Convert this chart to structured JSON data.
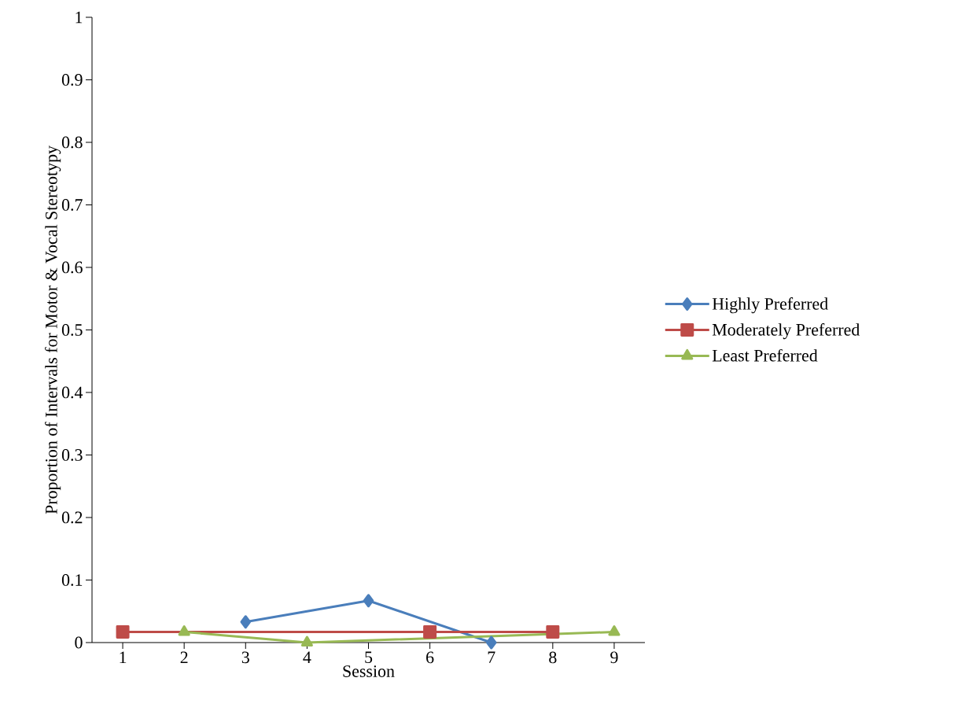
{
  "chart_data": {
    "type": "line",
    "xlabel": "Session",
    "ylabel": "Proportion of Intervals for Motor & Vocal Stereotypy",
    "xlim": [
      0.5,
      9.5
    ],
    "xticks": [
      1,
      2,
      3,
      4,
      5,
      6,
      7,
      8,
      9
    ],
    "ylim": [
      0,
      1
    ],
    "yticks": [
      0,
      0.1,
      0.2,
      0.3,
      0.4,
      0.5,
      0.6,
      0.7,
      0.8,
      0.9,
      1
    ],
    "grid": false,
    "legend": "right",
    "line_style": "solid",
    "series": [
      {
        "name": "Highly Preferred",
        "color": "#4a7ebb",
        "marker": "diamond",
        "x": [
          3,
          5,
          7
        ],
        "values": [
          0.033,
          0.067,
          0
        ]
      },
      {
        "name": "Moderately Preferred",
        "color": "#be4b48",
        "marker": "square",
        "x": [
          1,
          6,
          8
        ],
        "values": [
          0.017,
          0.017,
          0.017
        ]
      },
      {
        "name": "Least Preferred",
        "color": "#98b954",
        "marker": "triangle",
        "x": [
          2,
          4,
          9
        ],
        "values": [
          0.017,
          0,
          0.017
        ]
      }
    ]
  }
}
